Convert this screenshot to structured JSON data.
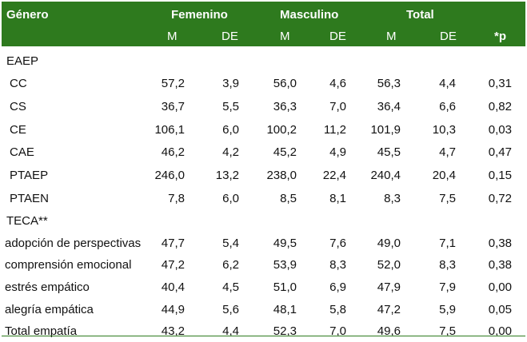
{
  "header": {
    "row1": {
      "genero": "Género",
      "femenino": "Femenino",
      "masculino": "Masculino",
      "total": "Total"
    },
    "row2": {
      "fm": "M",
      "fde": "DE",
      "mm": "M",
      "mde": "DE",
      "tm": "M",
      "tde": "DE",
      "p": "*p"
    }
  },
  "sections": [
    {
      "title": "EAEP",
      "rows": [
        {
          "label": "CC",
          "values": [
            "57,2",
            "3,9",
            "56,0",
            "4,6",
            "56,3",
            "4,4",
            "0,31"
          ]
        },
        {
          "label": "CS",
          "values": [
            "36,7",
            "5,5",
            "36,3",
            "7,0",
            "36,4",
            "6,6",
            "0,82"
          ]
        },
        {
          "label": "CE",
          "values": [
            "106,1",
            "6,0",
            "100,2",
            "11,2",
            "101,9",
            "10,3",
            "0,03"
          ]
        },
        {
          "label": "CAE",
          "values": [
            "46,2",
            "4,2",
            "45,2",
            "4,9",
            "45,5",
            "4,7",
            "0,47"
          ]
        },
        {
          "label": "PTAEP",
          "values": [
            "246,0",
            "13,2",
            "238,0",
            "22,4",
            "240,4",
            "20,4",
            "0,15"
          ]
        },
        {
          "label": "PTAEN",
          "values": [
            "7,8",
            "6,0",
            "8,5",
            "8,1",
            "8,3",
            "7,5",
            "0,72"
          ]
        }
      ]
    },
    {
      "title": "TECA**",
      "rows": [
        {
          "label": "adopción de perspectivas",
          "values": [
            "47,7",
            "5,4",
            "49,5",
            "7,6",
            "49,0",
            "7,1",
            "0,38"
          ]
        },
        {
          "label": "comprensión emocional",
          "values": [
            "47,2",
            "6,2",
            "53,9",
            "8,3",
            "52,0",
            "8,3",
            "0,38"
          ]
        },
        {
          "label": "estrés empático",
          "values": [
            "40,4",
            "4,5",
            "51,0",
            "6,9",
            "47,9",
            "7,9",
            "0,00"
          ]
        },
        {
          "label": "alegría empática",
          "values": [
            "44,9",
            "5,6",
            "48,1",
            "5,8",
            "47,2",
            "5,9",
            "0,05"
          ]
        },
        {
          "label": "Total empatía",
          "values": [
            "43,2",
            "4,4",
            "52,3",
            "7,0",
            "49,6",
            "7,5",
            "0,00"
          ]
        }
      ]
    }
  ],
  "colors": {
    "header_bg": "#2e7a1e",
    "header_text": "#ffffff",
    "rule": "#2e7a1e"
  }
}
